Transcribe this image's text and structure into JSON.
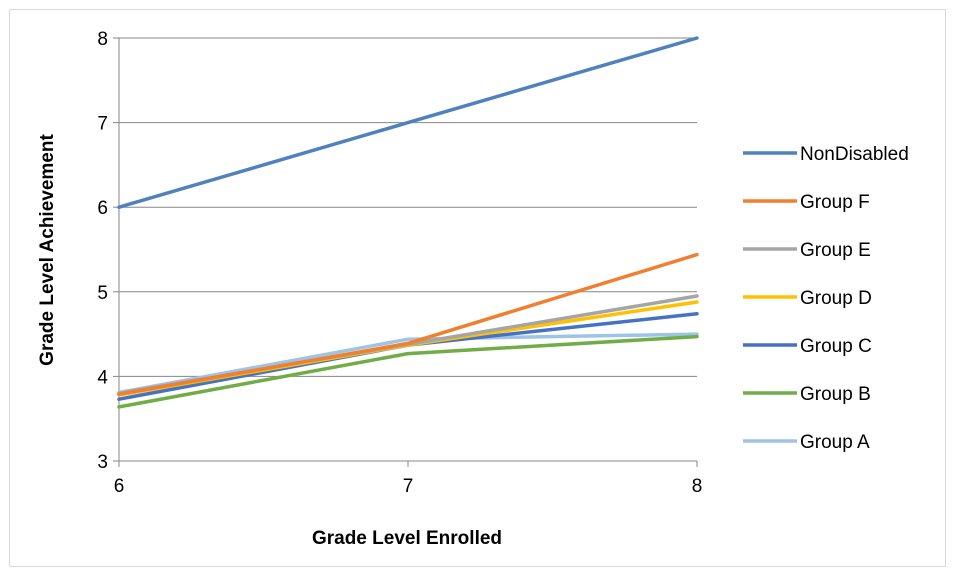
{
  "chart_data": {
    "type": "line",
    "title": "",
    "xlabel": "Grade Level Enrolled",
    "ylabel": "Grade Level Achievement",
    "x": [
      6,
      7,
      8
    ],
    "xlim": [
      6,
      8
    ],
    "ylim": [
      3,
      8
    ],
    "xticks": [
      "6",
      "7",
      "8"
    ],
    "yticks": [
      "3",
      "4",
      "5",
      "6",
      "7",
      "8"
    ],
    "grid": true,
    "legend_position": "right",
    "series": [
      {
        "name": "NonDisabled",
        "color": "#4e81bd",
        "values": [
          6.0,
          7.0,
          8.0
        ]
      },
      {
        "name": "Group F",
        "color": "#f07f2f",
        "values": [
          3.79,
          4.39,
          5.44
        ]
      },
      {
        "name": "Group E",
        "color": "#a5a5a5",
        "values": [
          3.8,
          4.38,
          4.95
        ]
      },
      {
        "name": "Group D",
        "color": "#ffc000",
        "values": [
          3.78,
          4.37,
          4.88
        ]
      },
      {
        "name": "Group C",
        "color": "#4472c4",
        "values": [
          3.73,
          4.37,
          4.74
        ]
      },
      {
        "name": "Group B",
        "color": "#70ad47",
        "values": [
          3.64,
          4.27,
          4.47
        ]
      },
      {
        "name": "Group A",
        "color": "#9dc3e6",
        "values": [
          3.81,
          4.44,
          4.5
        ]
      }
    ]
  }
}
